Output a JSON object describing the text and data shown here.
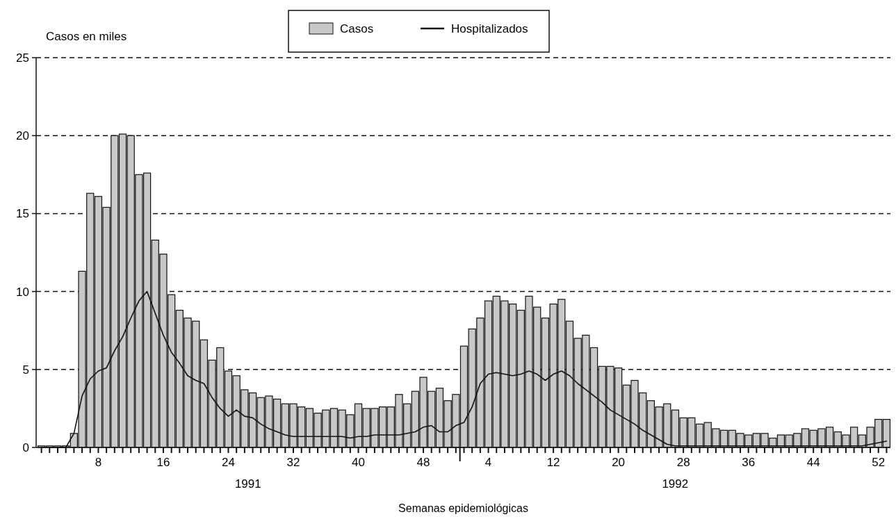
{
  "chart_data": {
    "type": "bar",
    "ylabel": "Casos en miles",
    "xlabel": "Semanas epidemiológicas",
    "categories": [
      null,
      null,
      null,
      null,
      null,
      null,
      null,
      "8",
      null,
      null,
      null,
      null,
      null,
      null,
      null,
      "16",
      null,
      null,
      null,
      null,
      null,
      null,
      null,
      "24",
      null,
      null,
      null,
      null,
      null,
      null,
      null,
      "32",
      null,
      null,
      null,
      null,
      null,
      null,
      null,
      "40",
      null,
      null,
      null,
      null,
      null,
      null,
      null,
      "48",
      null,
      null,
      null,
      null,
      null,
      null,
      null,
      "4",
      null,
      null,
      null,
      null,
      null,
      null,
      null,
      "12",
      null,
      null,
      null,
      null,
      null,
      null,
      null,
      "20",
      null,
      null,
      null,
      null,
      null,
      null,
      null,
      "28",
      null,
      null,
      null,
      null,
      null,
      null,
      null,
      "36",
      null,
      null,
      null,
      null,
      null,
      null,
      null,
      "44",
      null,
      null,
      null,
      null,
      null,
      null,
      null,
      "52",
      null
    ],
    "series": [
      {
        "name": "Casos",
        "color": "#c8c8c8",
        "values": [
          0.1,
          0.1,
          0.1,
          0.1,
          0.9,
          11.3,
          16.3,
          16.1,
          15.4,
          20.0,
          20.1,
          20.0,
          17.5,
          17.6,
          13.3,
          12.4,
          9.8,
          8.8,
          8.3,
          8.1,
          6.9,
          5.6,
          6.4,
          4.9,
          4.6,
          3.7,
          3.5,
          3.2,
          3.3,
          3.1,
          2.8,
          2.8,
          2.6,
          2.5,
          2.2,
          2.4,
          2.5,
          2.4,
          2.1,
          2.8,
          2.5,
          2.5,
          2.6,
          2.6,
          3.4,
          2.8,
          3.6,
          4.5,
          3.6,
          3.8,
          3.0,
          3.4,
          6.5,
          7.6,
          8.3,
          9.4,
          9.7,
          9.4,
          9.2,
          8.8,
          9.7,
          9.0,
          8.3,
          9.2,
          9.5,
          8.1,
          7.0,
          7.2,
          6.4,
          5.2,
          5.2,
          5.1,
          4.0,
          4.3,
          3.5,
          3.0,
          2.6,
          2.8,
          2.4,
          1.9,
          1.9,
          1.5,
          1.6,
          1.2,
          1.1,
          1.1,
          0.9,
          0.8,
          0.9,
          0.9,
          0.6,
          0.8,
          0.8,
          0.9,
          1.2,
          1.1,
          1.2,
          1.3,
          1.0,
          0.8,
          1.3,
          0.8,
          1.3,
          1.8,
          1.8
        ]
      },
      {
        "name": "Hospitalizados",
        "type": "line",
        "color": "#111111",
        "values": [
          0,
          0,
          0,
          0,
          0.9,
          3.3,
          4.4,
          4.9,
          5.1,
          6.2,
          7.1,
          8.3,
          9.4,
          10.0,
          8.6,
          7.2,
          6.1,
          5.4,
          4.6,
          4.3,
          4.1,
          3.2,
          2.5,
          2.0,
          2.4,
          2.0,
          1.9,
          1.5,
          1.2,
          1.0,
          0.8,
          0.7,
          0.7,
          0.7,
          0.7,
          0.7,
          0.7,
          0.7,
          0.6,
          0.7,
          0.7,
          0.8,
          0.8,
          0.8,
          0.8,
          0.9,
          1.0,
          1.3,
          1.4,
          1.0,
          1.0,
          1.4,
          1.6,
          2.6,
          4.1,
          4.7,
          4.8,
          4.7,
          4.6,
          4.7,
          4.9,
          4.7,
          4.3,
          4.7,
          4.9,
          4.6,
          4.1,
          3.7,
          3.3,
          2.9,
          2.4,
          2.1,
          1.8,
          1.5,
          1.1,
          0.8,
          0.5,
          0.2,
          0.1,
          0.1,
          0.1,
          0.1,
          0.1,
          0.1,
          0.1,
          0.1,
          0.1,
          0.1,
          0.1,
          0.1,
          0.1,
          0.1,
          0.1,
          0.1,
          0.1,
          0.1,
          0.1,
          0.1,
          0.1,
          0.1,
          0.1,
          0.1,
          0.2,
          0.3,
          0.4
        ]
      }
    ],
    "ylim": [
      0,
      25
    ],
    "yticks": [
      0,
      5,
      10,
      15,
      20,
      25
    ],
    "grid": "y",
    "legend": "top",
    "annotations": [
      "1991",
      "1992"
    ]
  }
}
